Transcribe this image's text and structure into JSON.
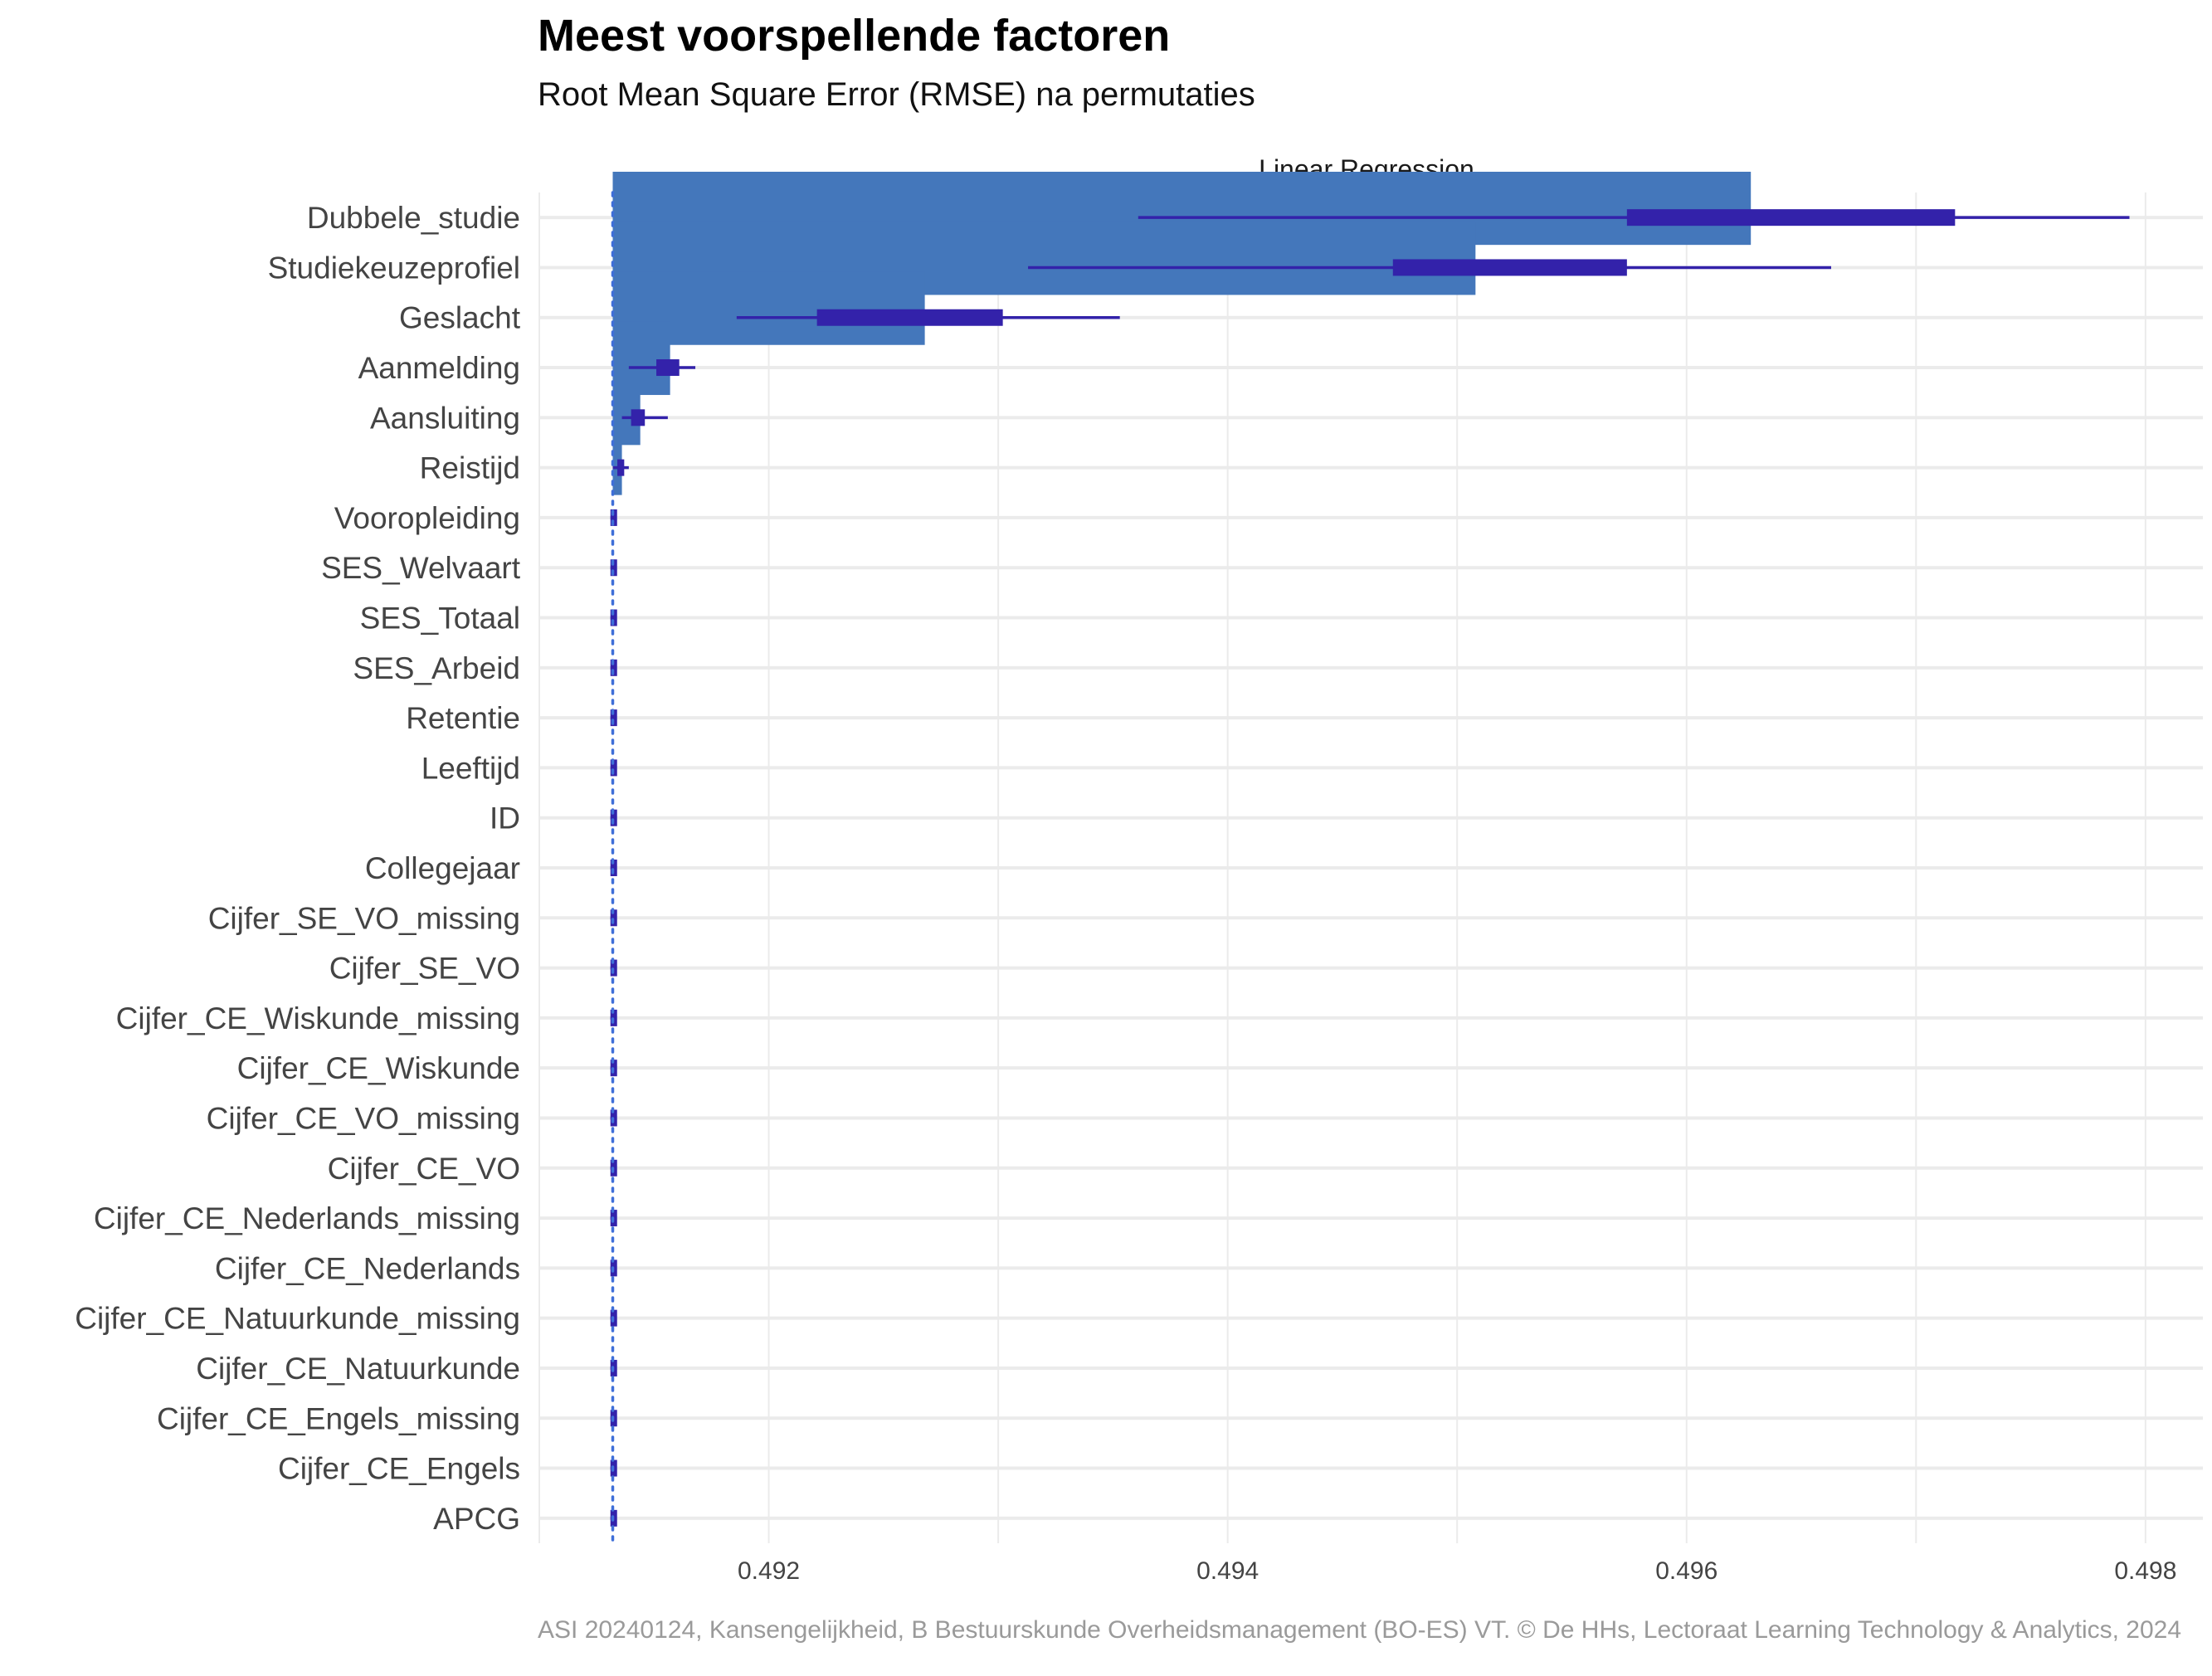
{
  "title": "Meest voorspellende factoren",
  "subtitle": "Root Mean Square Error (RMSE) na permutaties",
  "caption": "ASI 20240124, Kansengelijkheid, B Bestuurskunde Overheidsmanagement (BO-ES) VT. © De HHs, Lectoraat Learning Technology & Analytics, 2024",
  "chart_data": {
    "type": "bar",
    "facet": "Linear Regression",
    "xlim": [
      0.491,
      0.49825
    ],
    "baseline": 0.49132,
    "x_ticks": [
      "0.492",
      "0.494",
      "0.496",
      "0.498"
    ],
    "x_tick_values": [
      0.492,
      0.494,
      0.496,
      0.498
    ],
    "grid": true,
    "colors": {
      "bar": "#4477BB",
      "box": "#3322AA",
      "baseline": "#3F6FD8",
      "grid": "#EBEBEB"
    },
    "categories": [
      "Dubbele_studie",
      "Studiekeuzeprofiel",
      "Geslacht",
      "Aanmelding",
      "Aansluiting",
      "Reistijd",
      "Vooropleiding",
      "SES_Welvaart",
      "SES_Totaal",
      "SES_Arbeid",
      "Retentie",
      "Leeftijd",
      "ID",
      "Collegejaar",
      "Cijfer_SE_VO_missing",
      "Cijfer_SE_VO",
      "Cijfer_CE_Wiskunde_missing",
      "Cijfer_CE_Wiskunde",
      "Cijfer_CE_VO_missing",
      "Cijfer_CE_VO",
      "Cijfer_CE_Nederlands_missing",
      "Cijfer_CE_Nederlands",
      "Cijfer_CE_Natuurkunde_missing",
      "Cijfer_CE_Natuurkunde",
      "Cijfer_CE_Engels_missing",
      "Cijfer_CE_Engels",
      "APCG"
    ],
    "values": [
      0.49628,
      0.49508,
      0.49268,
      0.49157,
      0.49144,
      0.49136,
      0.49132,
      0.49132,
      0.49132,
      0.49132,
      0.49132,
      0.49132,
      0.49132,
      0.49132,
      0.49132,
      0.49132,
      0.49132,
      0.49132,
      0.49132,
      0.49132,
      0.49132,
      0.49132,
      0.49132,
      0.49132,
      0.49132,
      0.49132,
      0.49132
    ],
    "boxplots": [
      {
        "min": 0.49361,
        "q1": 0.49574,
        "q3": 0.49717,
        "max": 0.49793
      },
      {
        "min": 0.49313,
        "q1": 0.49472,
        "q3": 0.49574,
        "max": 0.49663
      },
      {
        "min": 0.49186,
        "q1": 0.49221,
        "q3": 0.49302,
        "max": 0.49353
      },
      {
        "min": 0.49139,
        "q1": 0.49151,
        "q3": 0.49161,
        "max": 0.49168
      },
      {
        "min": 0.49136,
        "q1": 0.4914,
        "q3": 0.49146,
        "max": 0.49156
      },
      {
        "min": 0.49132,
        "q1": 0.49134,
        "q3": 0.49137,
        "max": 0.49139
      },
      {
        "min": 0.49131,
        "q1": 0.49131,
        "q3": 0.49133,
        "max": 0.49133
      },
      {
        "min": 0.49131,
        "q1": 0.49131,
        "q3": 0.49133,
        "max": 0.49133
      },
      {
        "min": 0.49131,
        "q1": 0.49131,
        "q3": 0.49133,
        "max": 0.49133
      },
      {
        "min": 0.49131,
        "q1": 0.49131,
        "q3": 0.49133,
        "max": 0.49133
      },
      {
        "min": 0.49131,
        "q1": 0.49131,
        "q3": 0.49133,
        "max": 0.49133
      },
      {
        "min": 0.49131,
        "q1": 0.49131,
        "q3": 0.49133,
        "max": 0.49133
      },
      {
        "min": 0.49131,
        "q1": 0.49131,
        "q3": 0.49133,
        "max": 0.49133
      },
      {
        "min": 0.49131,
        "q1": 0.49131,
        "q3": 0.49133,
        "max": 0.49133
      },
      {
        "min": 0.49131,
        "q1": 0.49131,
        "q3": 0.49133,
        "max": 0.49133
      },
      {
        "min": 0.49131,
        "q1": 0.49131,
        "q3": 0.49133,
        "max": 0.49133
      },
      {
        "min": 0.49131,
        "q1": 0.49131,
        "q3": 0.49133,
        "max": 0.49133
      },
      {
        "min": 0.49131,
        "q1": 0.49131,
        "q3": 0.49133,
        "max": 0.49133
      },
      {
        "min": 0.49131,
        "q1": 0.49131,
        "q3": 0.49133,
        "max": 0.49133
      },
      {
        "min": 0.49131,
        "q1": 0.49131,
        "q3": 0.49133,
        "max": 0.49133
      },
      {
        "min": 0.49131,
        "q1": 0.49131,
        "q3": 0.49133,
        "max": 0.49133
      },
      {
        "min": 0.49131,
        "q1": 0.49131,
        "q3": 0.49133,
        "max": 0.49133
      },
      {
        "min": 0.49131,
        "q1": 0.49131,
        "q3": 0.49133,
        "max": 0.49133
      },
      {
        "min": 0.49131,
        "q1": 0.49131,
        "q3": 0.49133,
        "max": 0.49133
      },
      {
        "min": 0.49131,
        "q1": 0.49131,
        "q3": 0.49133,
        "max": 0.49133
      },
      {
        "min": 0.49131,
        "q1": 0.49131,
        "q3": 0.49133,
        "max": 0.49133
      },
      {
        "min": 0.49131,
        "q1": 0.49131,
        "q3": 0.49133,
        "max": 0.49133
      }
    ]
  }
}
